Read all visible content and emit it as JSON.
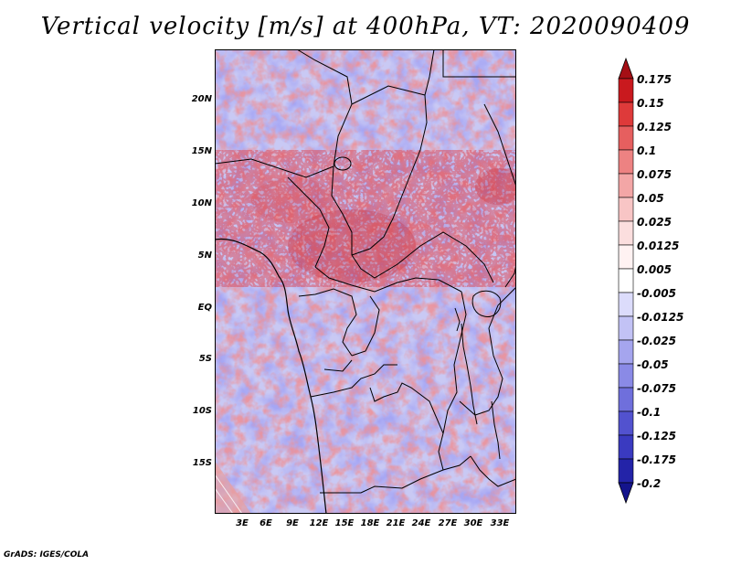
{
  "title": "Vertical velocity [m/s] at 400hPa, VT: 2020090409",
  "credit": "GrADS: IGES/COLA",
  "lat_labels": [
    "20N",
    "15N",
    "10N",
    "5N",
    "EQ",
    "5S",
    "10S",
    "15S"
  ],
  "lon_labels": [
    "3E",
    "6E",
    "9E",
    "12E",
    "15E",
    "18E",
    "21E",
    "24E",
    "27E",
    "30E",
    "33E"
  ],
  "colorbar": {
    "labels": [
      "0.175",
      "0.15",
      "0.125",
      "0.1",
      "0.075",
      "0.05",
      "0.025",
      "0.0125",
      "0.005",
      "-0.005",
      "-0.0125",
      "-0.025",
      "-0.05",
      "-0.075",
      "-0.1",
      "-0.125",
      "-0.175",
      "-0.2"
    ],
    "colors": [
      "#a50f15",
      "#c9191e",
      "#de3a3a",
      "#e65f5f",
      "#ed8282",
      "#f3a6a6",
      "#f8c5c5",
      "#fbdede",
      "#fff2f2",
      "#ffffff",
      "#dcdcfb",
      "#c2c2f5",
      "#a5a5ee",
      "#8a8ae6",
      "#6f6fdc",
      "#5252cf",
      "#3a3ac0",
      "#2323a8",
      "#14148c"
    ]
  },
  "chart_data": {
    "type": "heatmap",
    "title": "Vertical velocity [m/s] at 400hPa, VT: 2020090409",
    "variable": "Vertical velocity",
    "units": "m/s",
    "level": "400hPa",
    "valid_time": "2020090409",
    "x_ticks": [
      "3E",
      "6E",
      "9E",
      "12E",
      "15E",
      "18E",
      "21E",
      "24E",
      "27E",
      "30E",
      "33E"
    ],
    "y_ticks": [
      "20N",
      "15N",
      "10N",
      "5N",
      "EQ",
      "5S",
      "10S",
      "15S"
    ],
    "lon_range": [
      0,
      34
    ],
    "lat_range": [
      -20,
      25
    ],
    "contour_levels": [
      -0.2,
      -0.175,
      -0.125,
      -0.1,
      -0.075,
      -0.05,
      -0.025,
      -0.0125,
      -0.005,
      0.005,
      0.0125,
      0.025,
      0.05,
      0.075,
      0.1,
      0.125,
      0.15,
      0.175
    ],
    "color_scale": "blue (negative) to red (positive)",
    "colorbar_position": "right"
  }
}
